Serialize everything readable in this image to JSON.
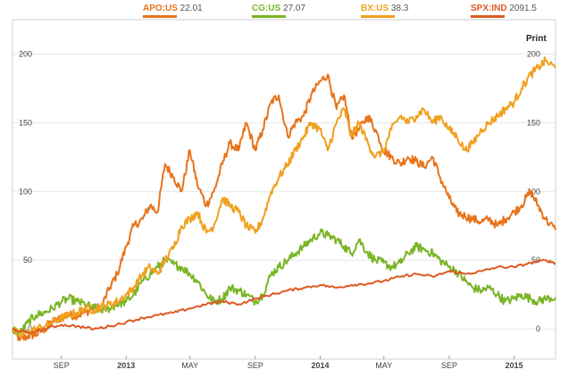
{
  "legend": [
    {
      "name": "APO:US",
      "value": "22.01",
      "color": "#e8731a"
    },
    {
      "name": "CG:US",
      "value": "27.07",
      "color": "#7ab526"
    },
    {
      "name": "BX:US",
      "value": "38.3",
      "color": "#f0a01e"
    },
    {
      "name": "SPX:IND",
      "value": "2091.5",
      "color": "#dd5a22"
    }
  ],
  "print_label": "Print",
  "chart_data": {
    "type": "line",
    "title": "",
    "xlabel": "",
    "ylabel": "",
    "ylim": [
      -22,
      225
    ],
    "xlim": [
      "2012-06-01",
      "2015-03-20"
    ],
    "grid": "horizontal",
    "legend_placement": "top",
    "x_ticks": [
      {
        "date": "2012-09-01",
        "label": "SEP",
        "bold": false
      },
      {
        "date": "2013-01-01",
        "label": "2013",
        "bold": true
      },
      {
        "date": "2013-05-01",
        "label": "MAY",
        "bold": false
      },
      {
        "date": "2013-09-01",
        "label": "SEP",
        "bold": false
      },
      {
        "date": "2014-01-01",
        "label": "2014",
        "bold": true
      },
      {
        "date": "2014-05-01",
        "label": "MAY",
        "bold": false
      },
      {
        "date": "2014-09-01",
        "label": "SEP",
        "bold": false
      },
      {
        "date": "2015-01-01",
        "label": "2015",
        "bold": true
      }
    ],
    "y_ticks": [
      0,
      50,
      100,
      150,
      200
    ],
    "series": [
      {
        "name": "APO:US",
        "color": "#e8731a",
        "points": [
          [
            "2012-06-01",
            0
          ],
          [
            "2012-06-15",
            -8
          ],
          [
            "2012-07-01",
            -5
          ],
          [
            "2012-07-15",
            -4
          ],
          [
            "2012-08-01",
            0
          ],
          [
            "2012-08-15",
            5
          ],
          [
            "2012-09-01",
            8
          ],
          [
            "2012-09-15",
            10
          ],
          [
            "2012-10-01",
            10
          ],
          [
            "2012-10-15",
            12
          ],
          [
            "2012-11-01",
            15
          ],
          [
            "2012-11-15",
            16
          ],
          [
            "2012-12-01",
            30
          ],
          [
            "2012-12-15",
            40
          ],
          [
            "2013-01-01",
            60
          ],
          [
            "2013-01-15",
            75
          ],
          [
            "2013-02-01",
            80
          ],
          [
            "2013-02-15",
            90
          ],
          [
            "2013-03-01",
            85
          ],
          [
            "2013-03-15",
            120
          ],
          [
            "2013-04-01",
            110
          ],
          [
            "2013-04-15",
            100
          ],
          [
            "2013-05-01",
            130
          ],
          [
            "2013-05-15",
            105
          ],
          [
            "2013-06-01",
            90
          ],
          [
            "2013-06-15",
            100
          ],
          [
            "2013-07-01",
            120
          ],
          [
            "2013-07-15",
            135
          ],
          [
            "2013-08-01",
            130
          ],
          [
            "2013-08-15",
            150
          ],
          [
            "2013-09-01",
            130
          ],
          [
            "2013-09-15",
            145
          ],
          [
            "2013-10-01",
            165
          ],
          [
            "2013-10-15",
            170
          ],
          [
            "2013-11-01",
            140
          ],
          [
            "2013-11-15",
            150
          ],
          [
            "2013-12-01",
            155
          ],
          [
            "2013-12-15",
            170
          ],
          [
            "2014-01-01",
            180
          ],
          [
            "2014-01-15",
            185
          ],
          [
            "2014-02-01",
            160
          ],
          [
            "2014-02-15",
            170
          ],
          [
            "2014-03-01",
            140
          ],
          [
            "2014-03-15",
            145
          ],
          [
            "2014-04-01",
            155
          ],
          [
            "2014-04-15",
            145
          ],
          [
            "2014-05-01",
            130
          ],
          [
            "2014-05-15",
            125
          ],
          [
            "2014-06-01",
            120
          ],
          [
            "2014-06-15",
            125
          ],
          [
            "2014-07-01",
            122
          ],
          [
            "2014-07-15",
            118
          ],
          [
            "2014-08-01",
            125
          ],
          [
            "2014-08-15",
            110
          ],
          [
            "2014-09-01",
            95
          ],
          [
            "2014-09-15",
            85
          ],
          [
            "2014-10-01",
            82
          ],
          [
            "2014-10-15",
            80
          ],
          [
            "2014-11-01",
            78
          ],
          [
            "2014-11-15",
            80
          ],
          [
            "2014-12-01",
            75
          ],
          [
            "2014-12-15",
            80
          ],
          [
            "2015-01-01",
            85
          ],
          [
            "2015-01-15",
            90
          ],
          [
            "2015-02-01",
            100
          ],
          [
            "2015-02-15",
            90
          ],
          [
            "2015-03-01",
            80
          ],
          [
            "2015-03-20",
            72
          ]
        ]
      },
      {
        "name": "CG:US",
        "color": "#7ab526",
        "points": [
          [
            "2012-06-01",
            0
          ],
          [
            "2012-06-15",
            -3
          ],
          [
            "2012-07-01",
            5
          ],
          [
            "2012-07-15",
            10
          ],
          [
            "2012-08-01",
            12
          ],
          [
            "2012-08-15",
            15
          ],
          [
            "2012-09-01",
            20
          ],
          [
            "2012-09-15",
            22
          ],
          [
            "2012-10-01",
            20
          ],
          [
            "2012-10-15",
            18
          ],
          [
            "2012-11-01",
            15
          ],
          [
            "2012-11-15",
            14
          ],
          [
            "2012-12-01",
            15
          ],
          [
            "2012-12-15",
            18
          ],
          [
            "2013-01-01",
            20
          ],
          [
            "2013-01-15",
            25
          ],
          [
            "2013-02-01",
            35
          ],
          [
            "2013-02-15",
            40
          ],
          [
            "2013-03-01",
            45
          ],
          [
            "2013-03-15",
            50
          ],
          [
            "2013-04-01",
            47
          ],
          [
            "2013-04-15",
            45
          ],
          [
            "2013-05-01",
            40
          ],
          [
            "2013-05-15",
            35
          ],
          [
            "2013-06-01",
            25
          ],
          [
            "2013-06-15",
            20
          ],
          [
            "2013-07-01",
            22
          ],
          [
            "2013-07-15",
            30
          ],
          [
            "2013-08-01",
            28
          ],
          [
            "2013-08-15",
            25
          ],
          [
            "2013-09-01",
            20
          ],
          [
            "2013-09-15",
            25
          ],
          [
            "2013-10-01",
            40
          ],
          [
            "2013-10-15",
            45
          ],
          [
            "2013-11-01",
            50
          ],
          [
            "2013-11-15",
            55
          ],
          [
            "2013-12-01",
            60
          ],
          [
            "2013-12-15",
            65
          ],
          [
            "2014-01-01",
            70
          ],
          [
            "2014-01-15",
            68
          ],
          [
            "2014-02-01",
            65
          ],
          [
            "2014-02-15",
            60
          ],
          [
            "2014-03-01",
            55
          ],
          [
            "2014-03-15",
            65
          ],
          [
            "2014-04-01",
            55
          ],
          [
            "2014-04-15",
            50
          ],
          [
            "2014-05-01",
            48
          ],
          [
            "2014-05-15",
            45
          ],
          [
            "2014-06-01",
            48
          ],
          [
            "2014-06-15",
            55
          ],
          [
            "2014-07-01",
            60
          ],
          [
            "2014-07-15",
            58
          ],
          [
            "2014-08-01",
            55
          ],
          [
            "2014-08-15",
            50
          ],
          [
            "2014-09-01",
            45
          ],
          [
            "2014-09-15",
            42
          ],
          [
            "2014-10-01",
            35
          ],
          [
            "2014-10-15",
            30
          ],
          [
            "2014-11-01",
            28
          ],
          [
            "2014-11-15",
            30
          ],
          [
            "2014-12-01",
            25
          ],
          [
            "2014-12-15",
            20
          ],
          [
            "2015-01-01",
            22
          ],
          [
            "2015-01-15",
            25
          ],
          [
            "2015-02-01",
            22
          ],
          [
            "2015-02-15",
            20
          ],
          [
            "2015-03-01",
            22
          ],
          [
            "2015-03-20",
            23
          ]
        ]
      },
      {
        "name": "BX:US",
        "color": "#f0a01e",
        "points": [
          [
            "2012-06-01",
            0
          ],
          [
            "2012-06-15",
            -5
          ],
          [
            "2012-07-01",
            -2
          ],
          [
            "2012-07-15",
            0
          ],
          [
            "2012-08-01",
            2
          ],
          [
            "2012-08-15",
            5
          ],
          [
            "2012-09-01",
            8
          ],
          [
            "2012-09-15",
            10
          ],
          [
            "2012-10-01",
            12
          ],
          [
            "2012-10-15",
            15
          ],
          [
            "2012-11-01",
            14
          ],
          [
            "2012-11-15",
            16
          ],
          [
            "2012-12-01",
            18
          ],
          [
            "2012-12-15",
            20
          ],
          [
            "2013-01-01",
            25
          ],
          [
            "2013-01-15",
            30
          ],
          [
            "2013-02-01",
            40
          ],
          [
            "2013-02-15",
            45
          ],
          [
            "2013-03-01",
            40
          ],
          [
            "2013-03-15",
            50
          ],
          [
            "2013-04-01",
            60
          ],
          [
            "2013-04-15",
            75
          ],
          [
            "2013-05-01",
            80
          ],
          [
            "2013-05-15",
            85
          ],
          [
            "2013-06-01",
            70
          ],
          [
            "2013-06-15",
            75
          ],
          [
            "2013-07-01",
            95
          ],
          [
            "2013-07-15",
            90
          ],
          [
            "2013-08-01",
            85
          ],
          [
            "2013-08-15",
            75
          ],
          [
            "2013-09-01",
            70
          ],
          [
            "2013-09-15",
            80
          ],
          [
            "2013-10-01",
            100
          ],
          [
            "2013-10-15",
            110
          ],
          [
            "2013-11-01",
            120
          ],
          [
            "2013-11-15",
            130
          ],
          [
            "2013-12-01",
            140
          ],
          [
            "2013-12-15",
            150
          ],
          [
            "2014-01-01",
            145
          ],
          [
            "2014-01-15",
            130
          ],
          [
            "2014-02-01",
            150
          ],
          [
            "2014-02-15",
            160
          ],
          [
            "2014-03-01",
            140
          ],
          [
            "2014-03-15",
            150
          ],
          [
            "2014-04-01",
            135
          ],
          [
            "2014-04-15",
            125
          ],
          [
            "2014-05-01",
            130
          ],
          [
            "2014-05-15",
            145
          ],
          [
            "2014-06-01",
            155
          ],
          [
            "2014-06-15",
            150
          ],
          [
            "2014-07-01",
            155
          ],
          [
            "2014-07-15",
            160
          ],
          [
            "2014-08-01",
            150
          ],
          [
            "2014-08-15",
            155
          ],
          [
            "2014-09-01",
            145
          ],
          [
            "2014-09-15",
            140
          ],
          [
            "2014-10-01",
            130
          ],
          [
            "2014-10-15",
            135
          ],
          [
            "2014-11-01",
            145
          ],
          [
            "2014-11-15",
            150
          ],
          [
            "2014-12-01",
            155
          ],
          [
            "2014-12-15",
            160
          ],
          [
            "2015-01-01",
            165
          ],
          [
            "2015-01-15",
            175
          ],
          [
            "2015-02-01",
            185
          ],
          [
            "2015-02-15",
            190
          ],
          [
            "2015-03-01",
            195
          ],
          [
            "2015-03-20",
            190
          ]
        ]
      },
      {
        "name": "SPX:IND",
        "color": "#dd5a22",
        "points": [
          [
            "2012-06-01",
            0
          ],
          [
            "2012-07-01",
            -3
          ],
          [
            "2012-08-01",
            0
          ],
          [
            "2012-09-01",
            3
          ],
          [
            "2012-10-01",
            2
          ],
          [
            "2012-11-01",
            0
          ],
          [
            "2012-12-01",
            2
          ],
          [
            "2013-01-01",
            5
          ],
          [
            "2013-02-01",
            8
          ],
          [
            "2013-03-01",
            10
          ],
          [
            "2013-04-01",
            12
          ],
          [
            "2013-05-01",
            15
          ],
          [
            "2013-06-01",
            18
          ],
          [
            "2013-07-01",
            20
          ],
          [
            "2013-08-01",
            18
          ],
          [
            "2013-09-01",
            22
          ],
          [
            "2013-10-01",
            25
          ],
          [
            "2013-11-01",
            28
          ],
          [
            "2013-12-01",
            30
          ],
          [
            "2014-01-01",
            32
          ],
          [
            "2014-02-01",
            30
          ],
          [
            "2014-03-01",
            32
          ],
          [
            "2014-04-01",
            33
          ],
          [
            "2014-05-01",
            35
          ],
          [
            "2014-06-01",
            38
          ],
          [
            "2014-07-01",
            40
          ],
          [
            "2014-08-01",
            38
          ],
          [
            "2014-09-01",
            42
          ],
          [
            "2014-10-01",
            40
          ],
          [
            "2014-11-01",
            42
          ],
          [
            "2014-12-01",
            45
          ],
          [
            "2015-01-01",
            45
          ],
          [
            "2015-02-01",
            48
          ],
          [
            "2015-03-01",
            50
          ],
          [
            "2015-03-20",
            48
          ]
        ]
      }
    ]
  }
}
